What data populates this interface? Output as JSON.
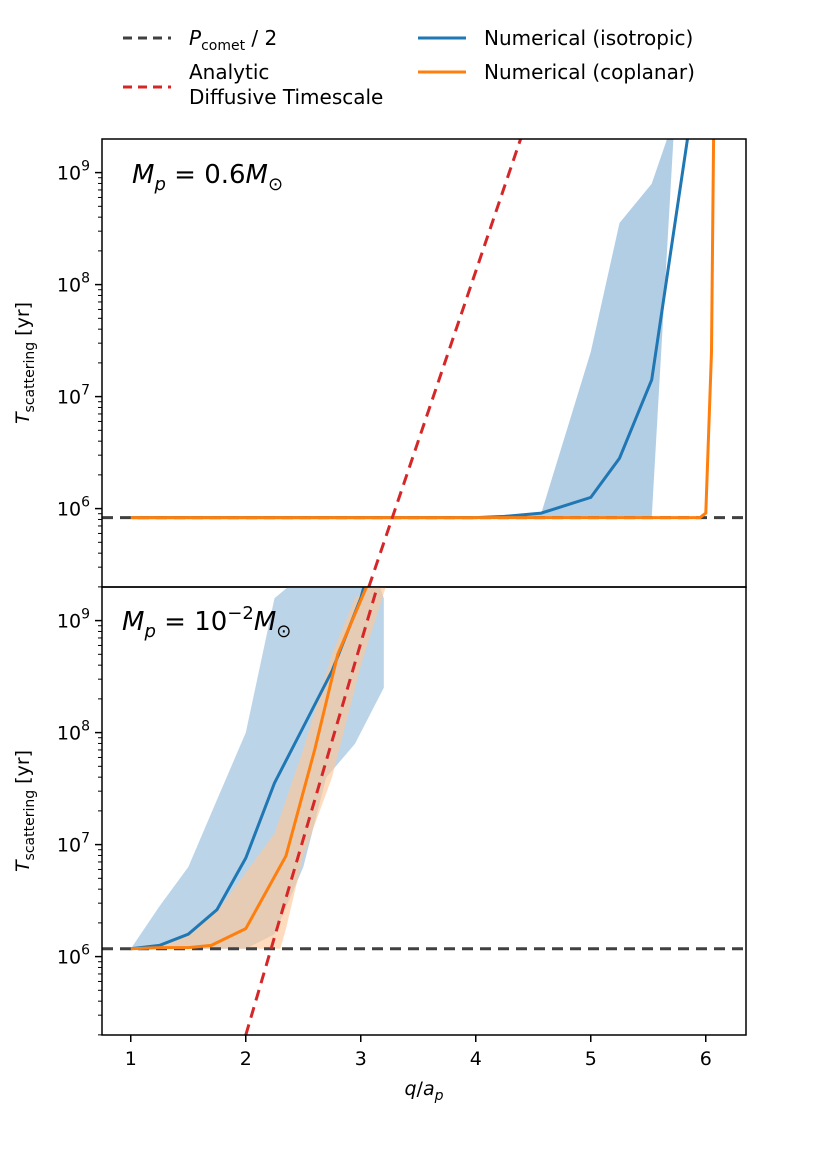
{
  "chart_data": {
    "type": "line",
    "colors": {
      "isotropic": "#1f77b4",
      "isotropic_band": "#aac9e2",
      "coplanar": "#ff7f0e",
      "coplanar_band": "#ffc89a",
      "analytic": "#d62728",
      "period": "#404040"
    },
    "legend": {
      "period": {
        "symbol": "P",
        "subscript": "comet",
        "suffix": " / 2"
      },
      "analytic_line1": "Analytic",
      "analytic_line2": "Diffusive Timescale",
      "isotropic": "Numerical (isotropic)",
      "coplanar": "Numerical (coplanar)"
    },
    "xlabel": {
      "q": "q",
      "slash": "/",
      "a": "a",
      "sub": "p"
    },
    "xlim": [
      0.75,
      6.35
    ],
    "x_ticks": [
      1,
      2,
      3,
      4,
      5,
      6
    ],
    "x_tick_labels": [
      "1",
      "2",
      "3",
      "4",
      "5",
      "6"
    ],
    "ylabel": {
      "main": "T",
      "sub": "scattering",
      "unit": " [yr]"
    },
    "ylim_log10": [
      5.3,
      9.3
    ],
    "y_ticks_log10": [
      6,
      7,
      8,
      9
    ],
    "y_tick_labels": [
      {
        "base": "10",
        "exp": "6"
      },
      {
        "base": "10",
        "exp": "7"
      },
      {
        "base": "10",
        "exp": "8"
      },
      {
        "base": "10",
        "exp": "9"
      }
    ],
    "panels": [
      {
        "annotation": {
          "lhs": "M",
          "lhs_sub": "p",
          "eq": " = 0.6",
          "rhs": "M",
          "rhs_sub": "⊙",
          "exp": ""
        },
        "period_half_log10": 5.92,
        "isotropic": {
          "x": [
            1.0,
            1.25,
            1.5,
            1.75,
            2.0,
            2.25,
            2.5,
            2.75,
            3.0,
            3.25,
            3.5,
            3.75,
            4.0,
            4.25,
            4.57,
            5.0,
            5.25,
            5.53,
            5.87
          ],
          "y_log10": [
            5.92,
            5.92,
            5.92,
            5.92,
            5.92,
            5.92,
            5.92,
            5.92,
            5.92,
            5.92,
            5.92,
            5.92,
            5.92,
            5.93,
            5.96,
            6.1,
            6.45,
            7.15,
            9.5
          ]
        },
        "isotropic_band": {
          "x": [
            1.0,
            4.3,
            4.57,
            5.0,
            5.25,
            5.53,
            5.73,
            5.73,
            5.53,
            5.25,
            5.0,
            4.57,
            4.3,
            1.0
          ],
          "y_log10": [
            5.92,
            5.92,
            5.96,
            7.4,
            8.55,
            8.9,
            9.5,
            9.5,
            5.92,
            5.92,
            5.92,
            5.92,
            5.92,
            5.92
          ]
        },
        "coplanar": {
          "x": [
            1.0,
            5.95,
            6.0,
            6.05,
            6.07
          ],
          "y_log10": [
            5.92,
            5.92,
            5.96,
            7.4,
            9.5
          ]
        },
        "analytic": {
          "x": [
            3.07,
            4.39
          ],
          "y_log10": [
            5.3,
            9.3
          ]
        }
      },
      {
        "annotation": {
          "lhs": "M",
          "lhs_sub": "p",
          "eq": " = 10",
          "rhs": "M",
          "rhs_sub": "⊙",
          "exp": "−2"
        },
        "period_half_log10": 6.07,
        "isotropic": {
          "x": [
            1.0,
            1.25,
            1.5,
            1.75,
            2.0,
            2.25,
            2.5,
            2.75,
            3.0,
            3.08
          ],
          "y_log10": [
            6.07,
            6.1,
            6.2,
            6.42,
            6.88,
            7.55,
            8.05,
            8.55,
            9.2,
            9.5
          ]
        },
        "isotropic_band": {
          "x": [
            1.0,
            1.25,
            1.5,
            1.75,
            2.0,
            2.25,
            2.6,
            3.1,
            3.2,
            3.2,
            2.95,
            2.7,
            2.5,
            2.25,
            2.0,
            1.75,
            1.5,
            1.25,
            1.0
          ],
          "y_log10": [
            6.07,
            6.45,
            6.8,
            7.4,
            8.0,
            9.2,
            9.5,
            9.5,
            9.2,
            8.4,
            7.9,
            7.6,
            6.8,
            6.2,
            6.07,
            6.07,
            6.07,
            6.07,
            6.07
          ]
        },
        "coplanar": {
          "x": [
            1.0,
            1.25,
            1.5,
            1.7,
            2.0,
            2.35,
            2.6,
            2.8,
            3.05,
            3.15
          ],
          "y_log10": [
            6.07,
            6.08,
            6.08,
            6.1,
            6.25,
            6.9,
            7.85,
            8.7,
            9.3,
            9.5
          ]
        },
        "coplanar_band": {
          "x": [
            1.0,
            1.25,
            1.5,
            1.75,
            2.0,
            2.25,
            2.5,
            2.75,
            2.95,
            3.2,
            3.28,
            3.28,
            3.0,
            2.75,
            2.5,
            2.35,
            2.3,
            2.0,
            1.75,
            1.5,
            1.25,
            1.0
          ],
          "y_log10": [
            6.07,
            6.1,
            6.2,
            6.4,
            6.75,
            7.1,
            7.85,
            8.7,
            9.2,
            9.45,
            9.5,
            9.5,
            8.6,
            7.6,
            6.9,
            6.25,
            6.07,
            6.07,
            6.07,
            6.07,
            6.07,
            6.07
          ]
        },
        "analytic": {
          "x": [
            2.0,
            3.2
          ],
          "y_log10": [
            5.3,
            9.5
          ]
        }
      }
    ]
  }
}
